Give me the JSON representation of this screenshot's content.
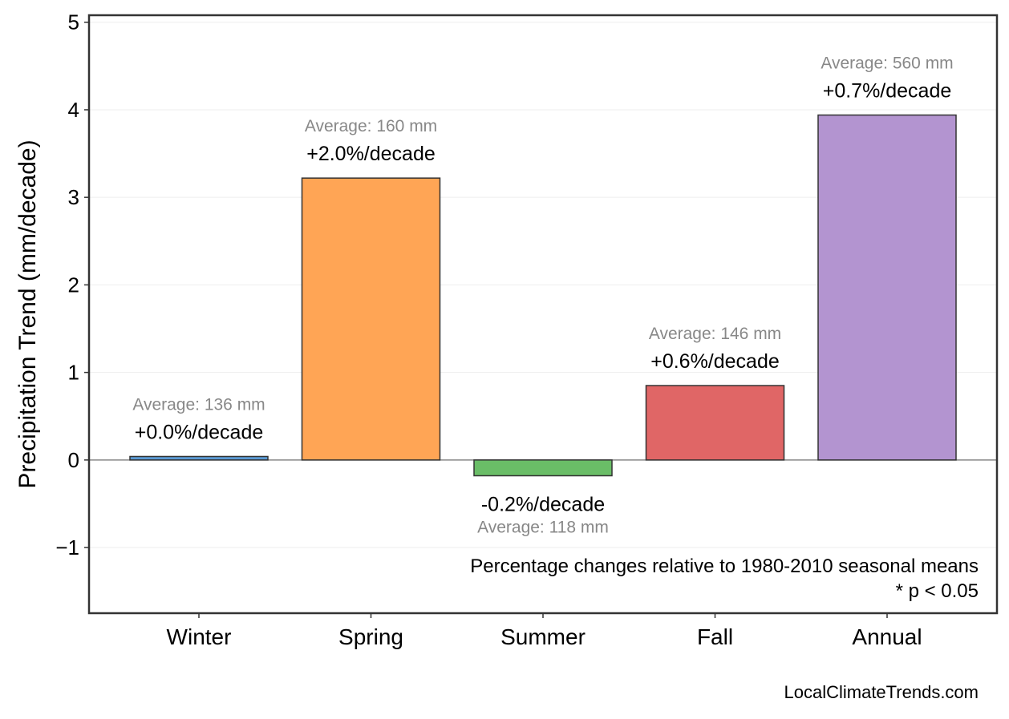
{
  "chart_data": {
    "type": "bar",
    "title": "",
    "xlabel": "",
    "ylabel": "Precipitation Trend (mm/decade)",
    "ylim": [
      -1.75,
      5.08
    ],
    "yticks": [
      -1,
      0,
      1,
      2,
      3,
      4,
      5
    ],
    "ytick_labels": [
      "−1",
      "0",
      "1",
      "2",
      "3",
      "4",
      "5"
    ],
    "grid": true,
    "categories": [
      "Winter",
      "Spring",
      "Summer",
      "Fall",
      "Annual"
    ],
    "values": [
      0.04,
      3.22,
      -0.18,
      0.85,
      3.94
    ],
    "colors": [
      "#5b9bd5",
      "#ffa555",
      "#6abd67",
      "#e06666",
      "#b394d0"
    ],
    "percent_labels": [
      "+0.0%/decade",
      "+2.0%/decade",
      "-0.2%/decade",
      "+0.6%/decade",
      "+0.7%/decade"
    ],
    "average_labels": [
      "Average: 136 mm",
      "Average: 160 mm",
      "Average: 118 mm",
      "Average: 146 mm",
      "Average: 560 mm"
    ],
    "annotation_lines": [
      "Percentage changes relative to 1980-2010 seasonal means",
      "* p < 0.05"
    ],
    "credit": "LocalClimateTrends.com"
  }
}
